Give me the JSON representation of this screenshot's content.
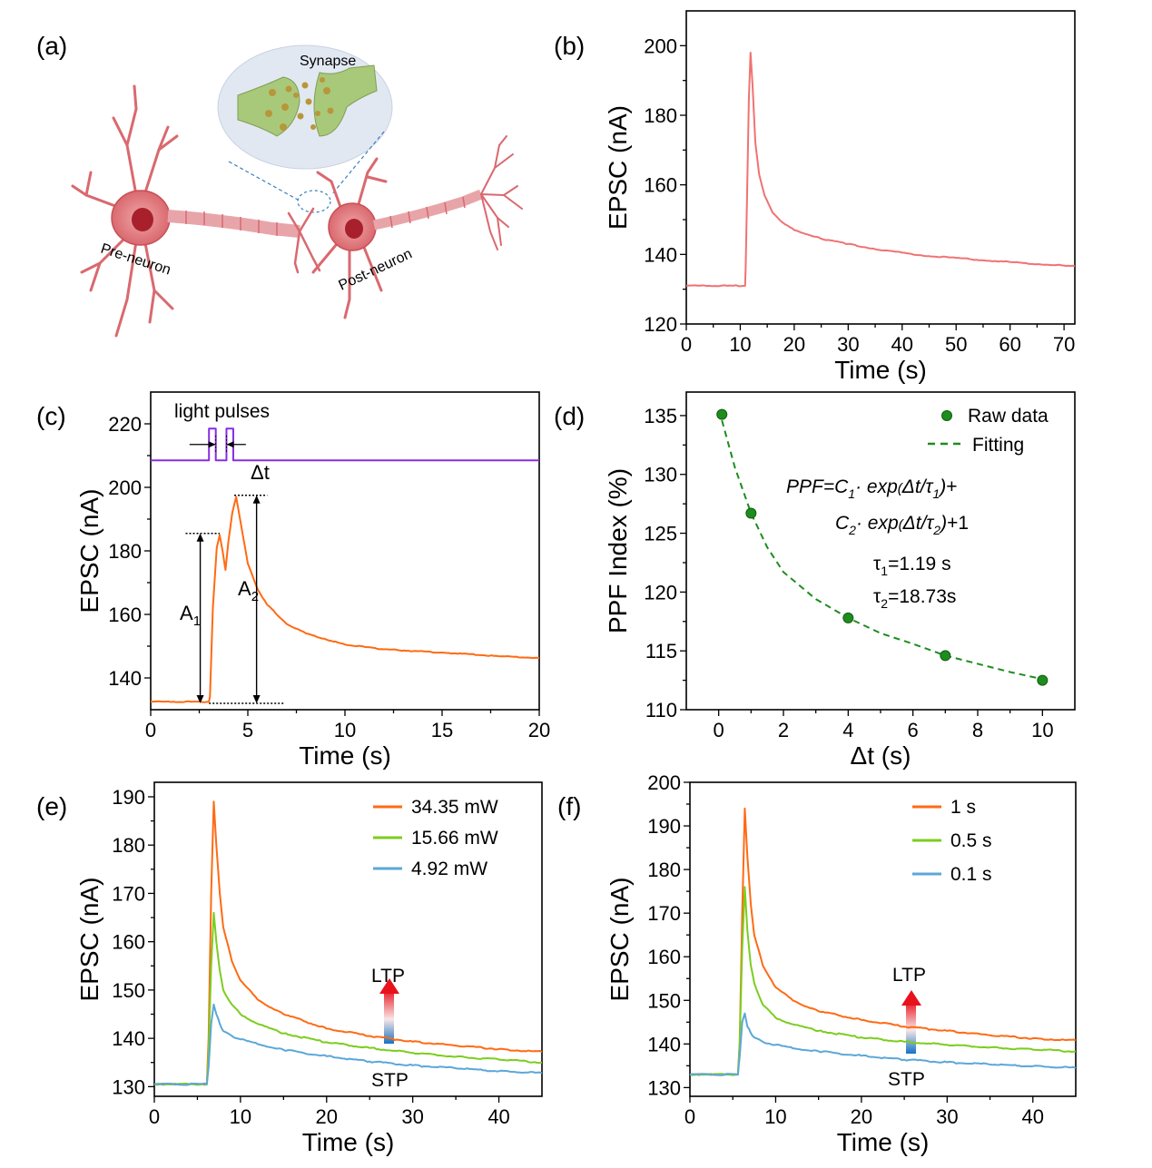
{
  "panels": {
    "a": {
      "label": "(a)",
      "texts": {
        "synapse": "Synapse",
        "pre": "Pre-neuron",
        "post": "Post-neuron"
      },
      "colors": {
        "neuron": "#e8878c",
        "neuron_dark": "#c94f56",
        "nucleus": "#a8202c",
        "synapse_bg": "#e2e8f2",
        "synapse_green": "#a9c97a",
        "vesicle": "#b8963a",
        "dash": "#3a7fc0"
      }
    },
    "b": {
      "label": "(b)"
    },
    "c": {
      "label": "(c)",
      "light_pulses": "light pulses",
      "delta_t": "Δt",
      "a1_main": "A",
      "a1_sub": "1",
      "a2_main": "A",
      "a2_sub": "2"
    },
    "d": {
      "label": "(d)",
      "eq_line1": {
        "ppf": "PPF",
        "eq": "=C",
        "c1sub": "1",
        "dot": "· ",
        "exp": "exp",
        "open": "(",
        "dt": "Δt/",
        "tau": "τ",
        "tausub": "1",
        "close": ")",
        "plus": "+"
      },
      "eq_line2": {
        "c": "C",
        "c2sub": "2",
        "dot": "· ",
        "exp": "exp",
        "open": "(",
        "dt": "Δt/",
        "tau": "τ",
        "tausub": "2",
        "close": ")",
        "tail": "+1"
      },
      "tau1": {
        "sym": "τ",
        "sub": "1",
        "val": "=1.19 s"
      },
      "tau2": {
        "sym": "τ",
        "sub": "2",
        "val": "=18.73s"
      }
    },
    "e": {
      "label": "(e)",
      "ltp": "LTP",
      "stp": "STP"
    },
    "f": {
      "label": "(f)",
      "ltp": "LTP",
      "stp": "STP"
    }
  },
  "colors": {
    "orange": "#ff6a13",
    "green": "#7ccd1e",
    "blue": "#5ba7d8",
    "pink": "#f07272",
    "purple": "#8a2be2",
    "dgreen": "#1e8c1e"
  },
  "chart_data": [
    {
      "panel": "b",
      "type": "line",
      "xlabel": "Time (s)",
      "ylabel": "EPSC (nA)",
      "xlim": [
        0,
        72
      ],
      "ylim": [
        120,
        210
      ],
      "xticks": [
        0,
        10,
        20,
        30,
        40,
        50,
        60,
        70
      ],
      "yticks": [
        120,
        140,
        160,
        180,
        200
      ],
      "series": [
        {
          "color": "#f07272",
          "x": [
            0,
            10.9,
            11,
            11.3,
            11.6,
            11.9,
            12.3,
            12.8,
            13.5,
            14.5,
            16,
            18,
            20,
            25,
            30,
            35,
            40,
            45,
            50,
            55,
            60,
            65,
            70,
            72
          ],
          "y": [
            131,
            131,
            136,
            160,
            185,
            198,
            188,
            172,
            163,
            157,
            152,
            149,
            147,
            144.5,
            143,
            141.5,
            140.5,
            139.5,
            139,
            138.3,
            137.8,
            137.2,
            136.8,
            136.6
          ]
        }
      ]
    },
    {
      "panel": "c",
      "type": "line",
      "xlabel": "Time (s)",
      "ylabel": "EPSC (nA)",
      "xlim": [
        0,
        20
      ],
      "ylim": [
        130,
        230
      ],
      "xticks": [
        0,
        5,
        10,
        15,
        20
      ],
      "yticks": [
        140,
        160,
        180,
        200,
        220
      ],
      "series": [
        {
          "color": "#ff6a13",
          "x": [
            0,
            3,
            3.05,
            3.2,
            3.4,
            3.55,
            3.7,
            3.85,
            4.0,
            4.2,
            4.4,
            4.6,
            5,
            5.5,
            6,
            7,
            8,
            10,
            12,
            15,
            18,
            20
          ],
          "y": [
            132.5,
            132.5,
            134,
            162,
            181,
            185,
            180,
            174,
            183,
            192,
            197,
            190,
            176,
            168,
            163,
            157,
            154,
            150.5,
            149,
            148,
            146.8,
            146.3
          ]
        },
        {
          "color": "#8a2be2",
          "x": [
            0,
            3.0,
            3.0,
            3.35,
            3.35,
            3.9,
            3.9,
            4.25,
            4.25,
            20
          ],
          "y": [
            208.5,
            208.5,
            218.5,
            218.5,
            208.5,
            208.5,
            218.5,
            218.5,
            208.5,
            208.5
          ]
        }
      ]
    },
    {
      "panel": "d",
      "type": "scatter",
      "xlabel": "Δt (s)",
      "ylabel": "PPF Index (%)",
      "xlim": [
        -1,
        11
      ],
      "ylim": [
        110,
        137
      ],
      "xticks": [
        0,
        2,
        4,
        6,
        8,
        10
      ],
      "yticks": [
        110,
        115,
        120,
        125,
        130,
        135
      ],
      "legend": [
        "Raw data",
        "Fitting"
      ],
      "raw": {
        "x": [
          0.1,
          1,
          4,
          7,
          10
        ],
        "y": [
          135.1,
          126.7,
          117.8,
          114.6,
          112.5
        ]
      },
      "fit": {
        "x": [
          0.1,
          0.5,
          1,
          1.5,
          2,
          3,
          4,
          5,
          6,
          7,
          8,
          9,
          10
        ],
        "y": [
          134.6,
          130.6,
          126.7,
          123.8,
          121.7,
          119.4,
          117.8,
          116.5,
          115.6,
          114.6,
          113.9,
          113.2,
          112.6
        ]
      }
    },
    {
      "panel": "e",
      "type": "line",
      "xlabel": "Time (s)",
      "ylabel": "EPSC (nA)",
      "xlim": [
        0,
        45
      ],
      "ylim": [
        128,
        193
      ],
      "xticks": [
        0,
        10,
        20,
        30,
        40
      ],
      "yticks": [
        130,
        140,
        150,
        160,
        170,
        180,
        190
      ],
      "series": [
        {
          "name": "34.35 mW",
          "color": "#ff6a13",
          "x": [
            0,
            6.1,
            6.3,
            6.6,
            6.9,
            7.2,
            7.6,
            8,
            9,
            10,
            12,
            15,
            20,
            25,
            30,
            35,
            40,
            45
          ],
          "y": [
            130.5,
            130.5,
            140,
            170,
            189,
            180,
            170,
            163,
            156,
            152,
            148,
            145,
            142,
            140.5,
            139.3,
            138.5,
            137.8,
            137.2
          ]
        },
        {
          "name": "15.66 mW",
          "color": "#7ccd1e",
          "x": [
            0,
            6.1,
            6.3,
            6.6,
            6.9,
            7.2,
            7.6,
            8,
            9,
            10,
            12,
            15,
            20,
            25,
            30,
            35,
            40,
            45
          ],
          "y": [
            130.5,
            130.5,
            137,
            155,
            166,
            160,
            154,
            150,
            147,
            145,
            143,
            141,
            139.2,
            138,
            137,
            136.2,
            135.6,
            135.0
          ]
        },
        {
          "name": "4.92 mW",
          "color": "#5ba7d8",
          "x": [
            0,
            6.1,
            6.3,
            6.6,
            6.9,
            7.2,
            7.6,
            8,
            9,
            10,
            12,
            15,
            20,
            25,
            30,
            35,
            40,
            45
          ],
          "y": [
            130.5,
            130.5,
            134,
            143,
            147,
            145,
            143,
            141.5,
            140.5,
            139.8,
            138.8,
            137.6,
            136.3,
            135.2,
            134.4,
            133.8,
            133.2,
            132.8
          ]
        }
      ]
    },
    {
      "panel": "f",
      "type": "line",
      "xlabel": "Time (s)",
      "ylabel": "EPSC (nA)",
      "xlim": [
        0,
        45
      ],
      "ylim": [
        128,
        200
      ],
      "xticks": [
        0,
        10,
        20,
        30,
        40
      ],
      "yticks": [
        130,
        140,
        150,
        160,
        170,
        180,
        190,
        200
      ],
      "series": [
        {
          "name": "1 s",
          "color": "#ff6a13",
          "x": [
            0,
            5.6,
            5.8,
            6.1,
            6.4,
            6.7,
            7.1,
            7.5,
            8.5,
            10,
            12,
            15,
            20,
            25,
            30,
            35,
            40,
            45
          ],
          "y": [
            133,
            133,
            140,
            170,
            194,
            183,
            172,
            165,
            158,
            153,
            150,
            147.5,
            145.5,
            144,
            143,
            142,
            141.3,
            140.8
          ]
        },
        {
          "name": "0.5 s",
          "color": "#7ccd1e",
          "x": [
            0,
            5.6,
            5.8,
            6.1,
            6.4,
            6.7,
            7.1,
            7.5,
            8.5,
            10,
            12,
            15,
            20,
            25,
            30,
            35,
            40,
            45
          ],
          "y": [
            133,
            133,
            140,
            162,
            176,
            166,
            158,
            154,
            149,
            146,
            144.5,
            143,
            141.5,
            140.5,
            139.8,
            139.2,
            138.7,
            138.3
          ]
        },
        {
          "name": "0.1 s",
          "color": "#5ba7d8",
          "x": [
            0,
            5.6,
            5.8,
            6.1,
            6.4,
            6.7,
            7.1,
            7.5,
            8.5,
            10,
            12,
            15,
            20,
            25,
            30,
            35,
            40,
            45
          ],
          "y": [
            133,
            133,
            137,
            145,
            147,
            144,
            142.5,
            141.5,
            140.5,
            139.8,
            139,
            138.3,
            137.3,
            136.4,
            135.8,
            135.3,
            134.9,
            134.5
          ]
        }
      ]
    }
  ]
}
